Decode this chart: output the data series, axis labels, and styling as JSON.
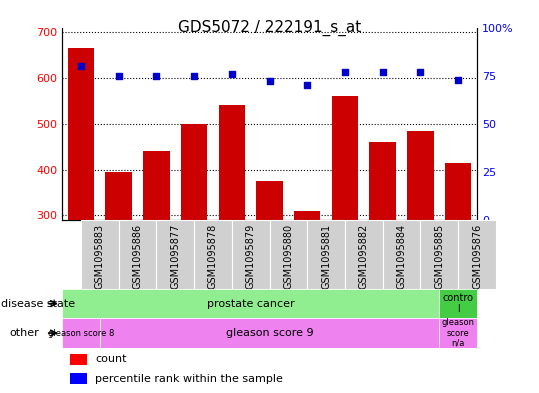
{
  "title": "GDS5072 / 222191_s_at",
  "samples": [
    "GSM1095883",
    "GSM1095886",
    "GSM1095877",
    "GSM1095878",
    "GSM1095879",
    "GSM1095880",
    "GSM1095881",
    "GSM1095882",
    "GSM1095884",
    "GSM1095885",
    "GSM1095876"
  ],
  "counts": [
    665,
    395,
    440,
    500,
    540,
    375,
    310,
    560,
    460,
    485,
    415
  ],
  "percentile_ranks": [
    80,
    75,
    75,
    75,
    76,
    72,
    70,
    77,
    77,
    77,
    73
  ],
  "ylim_left": [
    290,
    710
  ],
  "ylim_right": [
    0,
    100
  ],
  "yticks_left": [
    300,
    400,
    500,
    600,
    700
  ],
  "yticks_right": [
    0,
    25,
    50,
    75,
    100
  ],
  "bar_color": "#cc0000",
  "dot_color": "#0000cc",
  "bg_color": "#ffffff",
  "disease_state_prostate_color": "#90ee90",
  "disease_state_control_color": "#44cc44",
  "other_gleason8_color": "#ee82ee",
  "other_gleason9_color": "#ee82ee",
  "other_na_color": "#ee82ee",
  "legend_count_label": "count",
  "legend_pct_label": "percentile rank within the sample",
  "n_prostate": 10,
  "n_control": 1,
  "n_gleason8": 1,
  "n_gleason9": 9,
  "n_na": 1
}
